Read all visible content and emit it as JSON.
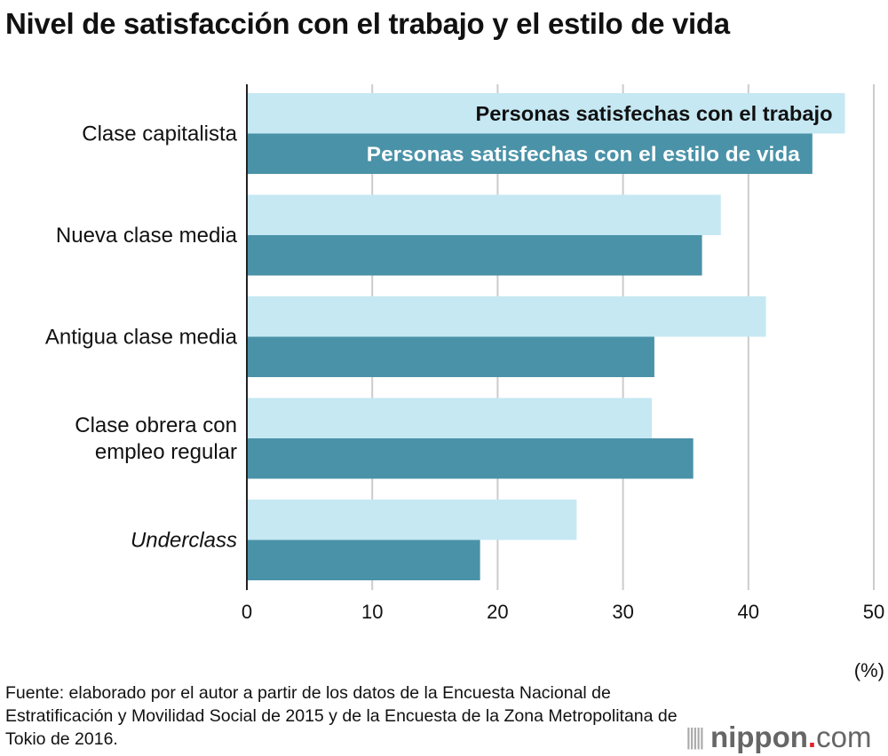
{
  "chart_data": {
    "type": "bar",
    "orientation": "horizontal",
    "title": "Nivel de satisfacción con el trabajo y el estilo de vida",
    "categories": [
      "Clase capitalista",
      "Nueva clase media",
      "Antigua clase media",
      "Clase obrera con empleo regular",
      "Underclass"
    ],
    "category_lines": [
      [
        "Clase capitalista"
      ],
      [
        "Nueva clase media"
      ],
      [
        "Antigua clase media"
      ],
      [
        "Clase obrera con",
        "empleo regular"
      ],
      [
        "Underclass"
      ]
    ],
    "category_italic": [
      false,
      false,
      false,
      false,
      true
    ],
    "series": [
      {
        "name": "Personas satisfechas con el trabajo",
        "color": "#c5e8f3",
        "label_color": "#111111",
        "values": [
          47.7,
          37.8,
          41.4,
          32.3,
          26.3
        ]
      },
      {
        "name": "Personas satisfechas con el estilo de vida",
        "color": "#4a92a8",
        "label_color": "#ffffff",
        "values": [
          45.1,
          36.3,
          32.5,
          35.6,
          18.6
        ]
      }
    ],
    "xlim": [
      0,
      50
    ],
    "xticks": [
      "0",
      "10",
      "20",
      "30",
      "40",
      "50"
    ],
    "xlabel": "(%)",
    "grid": true,
    "legend": "inside-first-bars"
  },
  "source": "Fuente: elaborado por el autor a partir de los datos de la Encuesta Nacional de Estratificación y Movilidad Social de 2015 y de la Encuesta de la Zona Metropolitana de Tokio de 2016.",
  "logo": {
    "name": "nippon",
    "dot": ".",
    "suffix": "com"
  }
}
